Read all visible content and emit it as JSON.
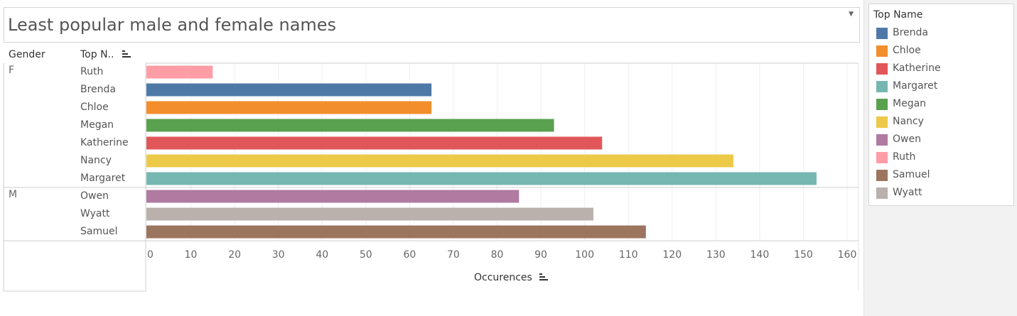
{
  "title": "Least popular male and female names",
  "headers": {
    "gender": "Gender",
    "top_name": "Top N.."
  },
  "chart_data": {
    "type": "bar",
    "orientation": "horizontal",
    "xlabel": "Occurences",
    "xlim": [
      0,
      160
    ],
    "xticks": [
      0,
      10,
      20,
      30,
      40,
      50,
      60,
      70,
      80,
      90,
      100,
      110,
      120,
      130,
      140,
      150,
      160
    ],
    "grid": true,
    "groups": [
      {
        "name": "F",
        "rows": [
          {
            "name": "Ruth",
            "value": 15
          },
          {
            "name": "Brenda",
            "value": 65
          },
          {
            "name": "Chloe",
            "value": 65
          },
          {
            "name": "Megan",
            "value": 93
          },
          {
            "name": "Katherine",
            "value": 104
          },
          {
            "name": "Nancy",
            "value": 134
          },
          {
            "name": "Margaret",
            "value": 153
          }
        ]
      },
      {
        "name": "M",
        "rows": [
          {
            "name": "Owen",
            "value": 85
          },
          {
            "name": "Wyatt",
            "value": 102
          },
          {
            "name": "Samuel",
            "value": 114
          }
        ]
      }
    ]
  },
  "legend": {
    "title": "Top Name",
    "placement": "right",
    "items": [
      {
        "label": "Brenda",
        "color": "#4e79a7"
      },
      {
        "label": "Chloe",
        "color": "#f28e2b"
      },
      {
        "label": "Katherine",
        "color": "#e15759"
      },
      {
        "label": "Margaret",
        "color": "#76b7b2"
      },
      {
        "label": "Megan",
        "color": "#59a14f"
      },
      {
        "label": "Nancy",
        "color": "#edc948"
      },
      {
        "label": "Owen",
        "color": "#b07aa1"
      },
      {
        "label": "Ruth",
        "color": "#ff9da7"
      },
      {
        "label": "Samuel",
        "color": "#9c755f"
      },
      {
        "label": "Wyatt",
        "color": "#bab0ac"
      }
    ]
  }
}
